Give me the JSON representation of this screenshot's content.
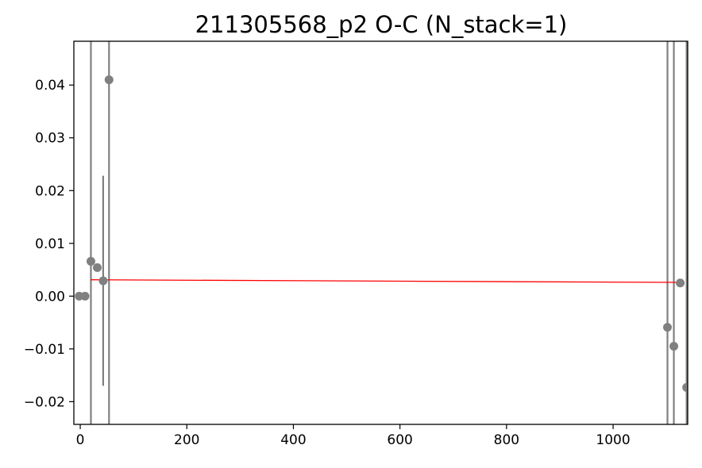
{
  "chart_data": {
    "type": "scatter",
    "title": "211305568_p2 O-C (N_stack=1)",
    "xlabel": "",
    "ylabel": "",
    "xlim": [
      -12,
      1140
    ],
    "ylim": [
      -0.0243,
      0.0483
    ],
    "x_ticks": [
      {
        "value": 0,
        "label": "0"
      },
      {
        "value": 200,
        "label": "200"
      },
      {
        "value": 400,
        "label": "400"
      },
      {
        "value": 600,
        "label": "600"
      },
      {
        "value": 800,
        "label": "800"
      },
      {
        "value": 1000,
        "label": "1000"
      }
    ],
    "y_ticks": [
      {
        "value": -0.02,
        "label": "−0.02"
      },
      {
        "value": -0.01,
        "label": "−0.01"
      },
      {
        "value": 0.0,
        "label": "0.00"
      },
      {
        "value": 0.01,
        "label": "0.01"
      },
      {
        "value": 0.02,
        "label": "0.02"
      },
      {
        "value": 0.03,
        "label": "0.03"
      },
      {
        "value": 0.04,
        "label": "0.04"
      }
    ],
    "grid": false,
    "legend": false,
    "colors": {
      "points": "#808080",
      "errorbars": "#808080",
      "fit": "#ff0000",
      "axes": "#000000"
    },
    "series": [
      {
        "points": [
          {
            "x": -2,
            "y": 0.0,
            "yerr_low": null,
            "yerr_high": null
          },
          {
            "x": 9,
            "y": 0.0,
            "yerr_low": null,
            "yerr_high": null
          },
          {
            "x": 20,
            "y": 0.0066,
            "yerr_low": -0.03,
            "yerr_high": 0.06
          },
          {
            "x": 32,
            "y": 0.0054,
            "yerr_low": null,
            "yerr_high": null
          },
          {
            "x": 43,
            "y": 0.0029,
            "yerr_low": -0.017,
            "yerr_high": 0.0228
          },
          {
            "x": 54,
            "y": 0.041,
            "yerr_low": -0.03,
            "yerr_high": 0.06
          },
          {
            "x": 1102,
            "y": -0.0059,
            "yerr_low": -0.03,
            "yerr_high": 0.06
          },
          {
            "x": 1114,
            "y": -0.0095,
            "yerr_low": -0.03,
            "yerr_high": 0.06
          },
          {
            "x": 1126,
            "y": 0.0025,
            "yerr_low": null,
            "yerr_high": null
          },
          {
            "x": 1138,
            "y": -0.0173,
            "yerr_low": -0.03,
            "yerr_high": 0.06
          }
        ]
      }
    ],
    "fit_line": {
      "x": [
        20,
        1126
      ],
      "y": [
        0.0031,
        0.0026
      ]
    }
  }
}
